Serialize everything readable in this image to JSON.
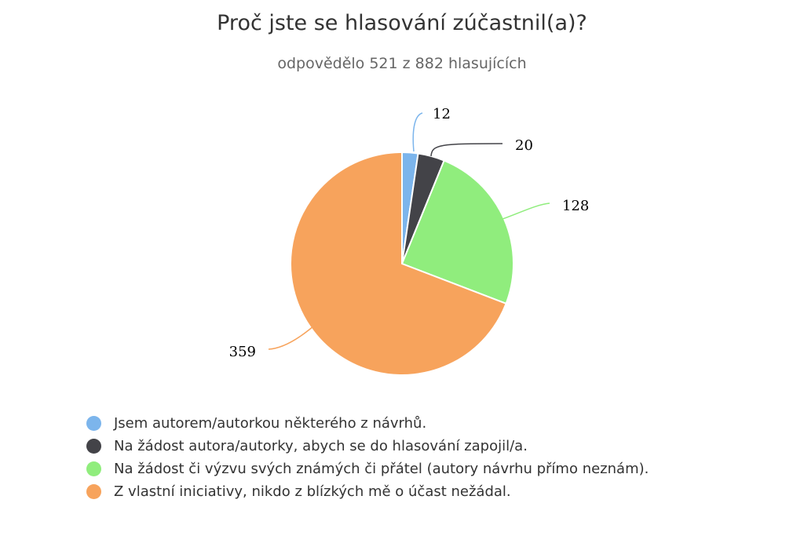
{
  "chart_data": {
    "type": "pie",
    "title": "Proč jste se hlasování zúčastnil(a)?",
    "subtitle": "odpovědělo 521 z 882 hlasujících",
    "legend_position": "bottom",
    "slices": [
      {
        "label": "Jsem autorem/autorkou některého z návrhů.",
        "value": 12,
        "color": "#7cb5ec"
      },
      {
        "label": "Na žádost autora/autorky, abych se do hlasování zapojil/a.",
        "value": 20,
        "color": "#434348"
      },
      {
        "label": "Na žádost či výzvu svých známých či přátel (autory návrhu přímo neznám).",
        "value": 128,
        "color": "#90ed7d"
      },
      {
        "label": "Z vlastní iniciativy, nikdo z blízkých mě o účast nežádal.",
        "value": 359,
        "color": "#f7a35c"
      }
    ]
  }
}
